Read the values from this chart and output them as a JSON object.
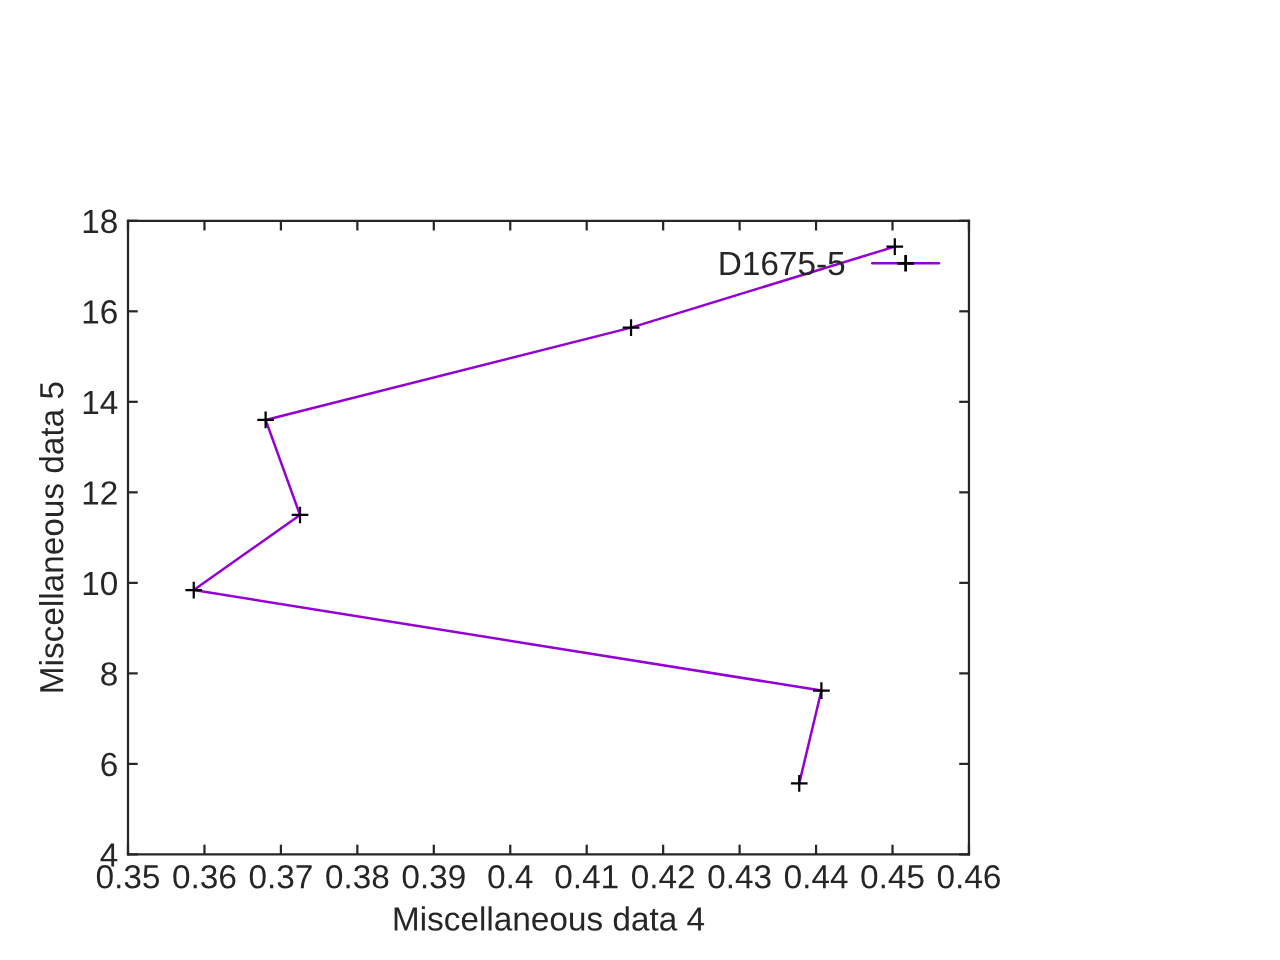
{
  "chart_data": {
    "type": "line",
    "xlabel": "Miscellaneous data 4",
    "ylabel": "Miscellaneous data 5",
    "series": [
      {
        "name": "D1675-5",
        "color": "#9400d3",
        "x": [
          0.4378,
          0.4407,
          0.3586,
          0.3725,
          0.368,
          0.4158,
          0.4503
        ],
        "values": [
          5.57,
          7.62,
          9.84,
          11.5,
          13.6,
          15.64,
          17.43
        ]
      }
    ],
    "xlim": [
      0.35,
      0.46
    ],
    "ylim": [
      4,
      18
    ],
    "xticks": [
      0.35,
      0.36,
      0.37,
      0.38,
      0.39,
      0.4,
      0.41,
      0.42,
      0.43,
      0.44,
      0.45,
      0.46
    ],
    "yticks": [
      4,
      6,
      8,
      10,
      12,
      14,
      16,
      18
    ],
    "grid": false,
    "legend": "top right",
    "marker": "cross",
    "line_style": "solid"
  }
}
